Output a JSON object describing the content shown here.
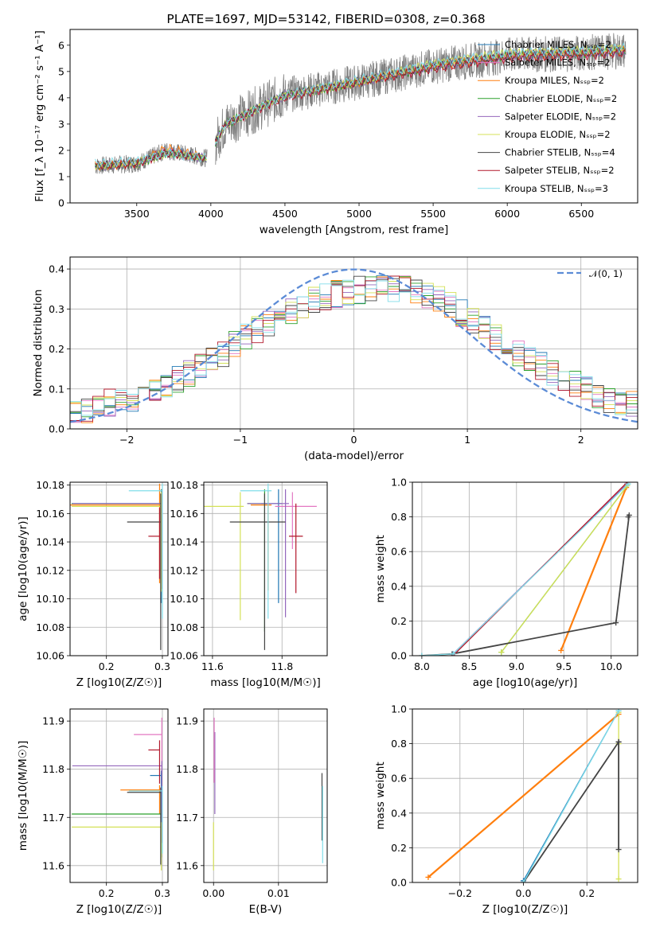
{
  "title": "PLATE=1697, MJD=53142, FIBERID=0308, z=0.368",
  "colors": {
    "Chabrier MILES": "#1f77b4",
    "Salpeter MILES": "#e377c2",
    "Kroupa MILES": "#ff7f0e",
    "Chabrier ELODIE": "#2ca02c",
    "Salpeter ELODIE": "#9467bd",
    "Kroupa ELODIE": "#d4e157",
    "Chabrier STELIB": "#444444",
    "Salpeter STELIB": "#b2182b",
    "Kroupa STELIB": "#80deea",
    "data": "#808080",
    "normal": "#5b8bd6"
  },
  "chart_data": [
    {
      "type": "line",
      "title": "PLATE=1697, MJD=53142, FIBERID=0308, z=0.368",
      "xlabel": "wavelength [Angstrom, rest frame]",
      "ylabel": "Flux [f_λ 10⁻¹⁷ erg cm⁻² s⁻¹ A⁻¹]",
      "xlim": [
        3050,
        6880
      ],
      "ylim": [
        0,
        6.6
      ],
      "xticks": [
        3500,
        4000,
        4500,
        5000,
        5500,
        6000,
        6500
      ],
      "yticks": [
        0,
        1,
        2,
        3,
        4,
        5,
        6
      ],
      "grid": false,
      "legend": "upper-right",
      "series": [
        {
          "name": "Chabrier MILES, N_SSP=2",
          "x": [
            3220,
            3500,
            3700,
            3970,
            4100,
            4500,
            5000,
            5500,
            6000,
            6500,
            6800
          ],
          "y": [
            1.4,
            1.5,
            2.0,
            1.7,
            3.0,
            4.1,
            4.6,
            5.2,
            5.6,
            5.7,
            5.8
          ]
        },
        {
          "name": "Salpeter MILES, N_SSP=2",
          "x": [
            3220,
            3500,
            3700,
            3970,
            4100,
            4500,
            5000,
            5500,
            6000,
            6500,
            6800
          ],
          "y": [
            1.4,
            1.5,
            2.0,
            1.7,
            3.0,
            4.1,
            4.6,
            5.2,
            5.6,
            5.7,
            5.8
          ]
        },
        {
          "name": "Kroupa MILES, N_SSP=2",
          "x": [
            3220,
            3500,
            3700,
            3970,
            4100,
            4500,
            5000,
            5500,
            6000,
            6500,
            6800
          ],
          "y": [
            1.4,
            1.5,
            2.1,
            1.7,
            3.0,
            4.1,
            4.6,
            5.2,
            5.6,
            5.7,
            5.8
          ]
        },
        {
          "name": "Chabrier ELODIE, N_SSP=2",
          "x": [
            3220,
            3500,
            3700,
            3970,
            4100,
            4500,
            5000,
            5500,
            6000,
            6500,
            6800
          ],
          "y": [
            1.4,
            1.5,
            1.9,
            1.7,
            3.0,
            4.1,
            4.6,
            5.2,
            5.6,
            5.7,
            5.8
          ]
        },
        {
          "name": "Salpeter ELODIE, N_SSP=2",
          "x": [
            3220,
            3500,
            3700,
            3970,
            4100,
            4500,
            5000,
            5500,
            6000,
            6500,
            6800
          ],
          "y": [
            1.4,
            1.5,
            1.9,
            1.7,
            3.0,
            4.1,
            4.6,
            5.2,
            5.6,
            5.7,
            5.8
          ]
        },
        {
          "name": "Kroupa ELODIE, N_SSP=2",
          "x": [
            3220,
            3500,
            3700,
            3970,
            4100,
            4500,
            5000,
            5500,
            6000,
            6500,
            6800
          ],
          "y": [
            1.4,
            1.5,
            1.9,
            1.7,
            3.0,
            4.1,
            4.6,
            5.3,
            5.7,
            5.8,
            5.9
          ]
        },
        {
          "name": "Chabrier STELIB, N_SSP=4",
          "x": [
            3220,
            3500,
            3700,
            3970,
            4100,
            4500,
            5000,
            5500,
            6000,
            6500,
            6800
          ],
          "y": [
            1.4,
            1.5,
            1.9,
            1.7,
            3.0,
            4.1,
            4.6,
            5.2,
            5.6,
            5.7,
            5.8
          ]
        },
        {
          "name": "Salpeter STELIB, N_SSP=2",
          "x": [
            3220,
            3500,
            3700,
            3970,
            4100,
            4500,
            5000,
            5500,
            6000,
            6500,
            6800
          ],
          "y": [
            1.4,
            1.5,
            1.9,
            1.7,
            3.0,
            4.0,
            4.6,
            5.1,
            5.5,
            5.6,
            5.7
          ]
        },
        {
          "name": "Kroupa STELIB, N_SSP=3",
          "x": [
            3220,
            3500,
            3700,
            3970,
            4100,
            4500,
            5000,
            5500,
            6000,
            6500,
            6800
          ],
          "y": [
            1.5,
            1.6,
            1.9,
            1.7,
            3.0,
            4.1,
            4.7,
            5.3,
            5.7,
            5.8,
            5.9
          ]
        }
      ]
    },
    {
      "type": "line",
      "xlabel": "(data-model)/error",
      "ylabel": "Normed distribution",
      "xlim": [
        -2.5,
        2.5
      ],
      "ylim": [
        0,
        0.43
      ],
      "xticks": [
        -2,
        -1,
        0,
        1,
        2
      ],
      "yticks": [
        0.0,
        0.1,
        0.2,
        0.3,
        0.4
      ],
      "grid": true,
      "legend": "upper-right",
      "legend_entries": [
        "𝒩(0, 1)"
      ],
      "hist_x": [
        -2.5,
        -2.3,
        -2.1,
        -1.9,
        -1.7,
        -1.5,
        -1.3,
        -1.1,
        -0.9,
        -0.7,
        -0.5,
        -0.3,
        -0.1,
        0.1,
        0.3,
        0.5,
        0.7,
        0.9,
        1.1,
        1.3,
        1.5,
        1.7,
        1.9,
        2.1,
        2.3,
        2.5
      ],
      "hist_y": [
        0.04,
        0.05,
        0.07,
        0.08,
        0.1,
        0.13,
        0.16,
        0.2,
        0.24,
        0.27,
        0.3,
        0.33,
        0.34,
        0.35,
        0.35,
        0.35,
        0.33,
        0.3,
        0.26,
        0.22,
        0.18,
        0.15,
        0.12,
        0.09,
        0.07,
        0.06
      ]
    },
    {
      "type": "scatter",
      "xlabel": "Z [log10(Z/Z☉)]",
      "ylabel": "age [log10(age/yr)]",
      "xlim": [
        0.135,
        0.31
      ],
      "ylim": [
        10.06,
        10.182
      ],
      "xticks": [
        0.2,
        0.3
      ],
      "yticks": [
        10.06,
        10.08,
        10.1,
        10.12,
        10.14,
        10.16,
        10.18
      ],
      "grid": true,
      "points": [
        {
          "series": "Chabrier MILES",
          "x": 0.298,
          "y": 10.167,
          "xerr": [
            0.16,
            0.0
          ],
          "yerr": [
            0.07,
            0.01
          ]
        },
        {
          "series": "Salpeter MILES",
          "x": 0.299,
          "y": 10.167,
          "xerr": [
            0.16,
            0.0
          ],
          "yerr": [
            0.05,
            0.01
          ]
        },
        {
          "series": "Kroupa MILES",
          "x": 0.295,
          "y": 10.166,
          "xerr": [
            0.16,
            0.0
          ],
          "yerr": [
            0.055,
            0.015
          ]
        },
        {
          "series": "Chabrier ELODIE",
          "x": 0.298,
          "y": 10.167,
          "xerr": [
            0.16,
            0.0
          ],
          "yerr": [
            0.04,
            0.01
          ]
        },
        {
          "series": "Salpeter ELODIE",
          "x": 0.299,
          "y": 10.167,
          "xerr": [
            0.16,
            0.0
          ],
          "yerr": [
            0.06,
            0.01
          ]
        },
        {
          "series": "Kroupa ELODIE",
          "x": 0.298,
          "y": 10.165,
          "xerr": [
            0.16,
            0.0
          ],
          "yerr": [
            0.06,
            0.01
          ]
        },
        {
          "series": "Chabrier STELIB",
          "x": 0.297,
          "y": 10.154,
          "xerr": [
            0.06,
            0.0
          ],
          "yerr": [
            0.09,
            0.02
          ]
        },
        {
          "series": "Salpeter STELIB",
          "x": 0.295,
          "y": 10.144,
          "xerr": [
            0.02,
            0.0
          ],
          "yerr": [
            0.03,
            0.02
          ]
        },
        {
          "series": "Kroupa STELIB",
          "x": 0.3,
          "y": 10.176,
          "xerr": [
            0.06,
            0.0
          ],
          "yerr": [
            0.09,
            0.005
          ]
        }
      ]
    },
    {
      "type": "scatter",
      "xlabel": "mass [log10(M/M☉)]",
      "ylabel": "",
      "xlim": [
        11.575,
        11.93
      ],
      "ylim": [
        10.06,
        10.182
      ],
      "xticks": [
        11.6,
        11.8
      ],
      "yticks": [
        10.06,
        10.08,
        10.1,
        10.12,
        10.14,
        10.16,
        10.18
      ],
      "grid": true,
      "points": [
        {
          "series": "Chabrier MILES",
          "x": 11.79,
          "y": 10.167,
          "xerr": [
            0.05,
            0.01
          ],
          "yerr": [
            0.07,
            0.01
          ]
        },
        {
          "series": "Salpeter MILES",
          "x": 11.83,
          "y": 10.165,
          "xerr": [
            0.05,
            0.07
          ],
          "yerr": [
            0.03,
            0.01
          ]
        },
        {
          "series": "Kroupa MILES",
          "x": 11.76,
          "y": 10.166,
          "xerr": [
            0.05,
            0.01
          ],
          "yerr": [
            0.06,
            0.01
          ]
        },
        {
          "series": "Chabrier ELODIE",
          "x": 11.75,
          "y": 10.167,
          "xerr": [
            0.05,
            0.01
          ],
          "yerr": [
            0.09,
            0.01
          ]
        },
        {
          "series": "Salpeter ELODIE",
          "x": 11.81,
          "y": 10.167,
          "xerr": [
            0.11,
            0.01
          ],
          "yerr": [
            0.08,
            0.01
          ]
        },
        {
          "series": "Kroupa ELODIE",
          "x": 11.68,
          "y": 10.165,
          "xerr": [
            0.11,
            0.01
          ],
          "yerr": [
            0.08,
            0.01
          ]
        },
        {
          "series": "Chabrier STELIB",
          "x": 11.75,
          "y": 10.154,
          "xerr": [
            0.1,
            0.06
          ],
          "yerr": [
            0.09,
            0.02
          ]
        },
        {
          "series": "Salpeter STELIB",
          "x": 11.84,
          "y": 10.144,
          "xerr": [
            0.02,
            0.02
          ],
          "yerr": [
            0.04,
            0.023
          ]
        },
        {
          "series": "Kroupa STELIB",
          "x": 11.76,
          "y": 10.176,
          "xerr": [
            0.08,
            0.01
          ],
          "yerr": [
            0.09,
            0.005
          ]
        }
      ]
    },
    {
      "type": "line",
      "xlabel": "age [log10(age/yr)]",
      "ylabel": "mass weight",
      "xlim": [
        7.9,
        10.28
      ],
      "ylim": [
        0,
        1.0
      ],
      "xticks": [
        8.0,
        8.5,
        9.0,
        9.5,
        10.0
      ],
      "yticks": [
        0.0,
        0.2,
        0.4,
        0.6,
        0.8,
        1.0
      ],
      "grid": true,
      "series": [
        {
          "name": "Chabrier MILES",
          "x": [
            8.33,
            10.17
          ],
          "y": [
            0.01,
            0.99
          ]
        },
        {
          "name": "Salpeter MILES",
          "x": [
            8.33,
            10.17
          ],
          "y": [
            0.01,
            0.99
          ]
        },
        {
          "name": "Kroupa MILES",
          "x": [
            9.47,
            10.16
          ],
          "y": [
            0.03,
            0.97
          ]
        },
        {
          "name": "Chabrier ELODIE",
          "x": [
            8.84,
            10.17
          ],
          "y": [
            0.02,
            0.98
          ]
        },
        {
          "name": "Salpeter ELODIE",
          "x": [
            8.33,
            10.17
          ],
          "y": [
            0.01,
            0.99
          ]
        },
        {
          "name": "Kroupa ELODIE",
          "x": [
            8.84,
            10.17
          ],
          "y": [
            0.02,
            0.98
          ]
        },
        {
          "name": "Chabrier STELIB",
          "x": [
            8.0,
            8.32,
            10.05,
            10.19,
            10.18
          ],
          "y": [
            0.0,
            0.01,
            0.19,
            0.81,
            0.8
          ]
        },
        {
          "name": "Salpeter STELIB",
          "x": [
            8.33,
            10.17
          ],
          "y": [
            0.0,
            1.0
          ]
        },
        {
          "name": "Kroupa STELIB",
          "x": [
            8.0,
            8.33,
            10.18
          ],
          "y": [
            0.0,
            0.01,
            0.99
          ]
        }
      ]
    },
    {
      "type": "scatter",
      "xlabel": "Z [log10(Z/Z☉)]",
      "ylabel": "mass [log10(M/M☉)]",
      "xlim": [
        0.135,
        0.31
      ],
      "ylim": [
        11.565,
        11.925
      ],
      "xticks": [
        0.2,
        0.3
      ],
      "yticks": [
        11.6,
        11.7,
        11.8,
        11.9
      ],
      "grid": true,
      "points": [
        {
          "series": "Chabrier MILES",
          "x": 0.298,
          "y": 11.787,
          "xerr": [
            0.02,
            0.0
          ],
          "yerr": [
            0.08,
            0.01
          ]
        },
        {
          "series": "Salpeter MILES",
          "x": 0.299,
          "y": 11.872,
          "xerr": [
            0.05,
            0.0
          ],
          "yerr": [
            0.08,
            0.035
          ]
        },
        {
          "series": "Kroupa MILES",
          "x": 0.295,
          "y": 11.757,
          "xerr": [
            0.07,
            0.0
          ],
          "yerr": [
            0.05,
            0.01
          ]
        },
        {
          "series": "Chabrier ELODIE",
          "x": 0.298,
          "y": 11.707,
          "xerr": [
            0.16,
            0.0
          ],
          "yerr": [
            0.09,
            0.01
          ]
        },
        {
          "series": "Salpeter ELODIE",
          "x": 0.299,
          "y": 11.807,
          "xerr": [
            0.16,
            0.0
          ],
          "yerr": [
            0.16,
            0.01
          ]
        },
        {
          "series": "Kroupa ELODIE",
          "x": 0.298,
          "y": 11.68,
          "xerr": [
            0.16,
            0.0
          ],
          "yerr": [
            0.09,
            0.01
          ]
        },
        {
          "series": "Chabrier STELIB",
          "x": 0.297,
          "y": 11.752,
          "xerr": [
            0.06,
            0.0
          ],
          "yerr": [
            0.15,
            0.01
          ]
        },
        {
          "series": "Salpeter STELIB",
          "x": 0.295,
          "y": 11.84,
          "xerr": [
            0.02,
            0.0
          ],
          "yerr": [
            0.07,
            0.02
          ]
        },
        {
          "series": "Kroupa STELIB",
          "x": 0.3,
          "y": 11.755,
          "xerr": [
            0.06,
            0.0
          ],
          "yerr": [
            0.13,
            0.01
          ]
        }
      ]
    },
    {
      "type": "scatter",
      "xlabel": "E(B-V)",
      "ylabel": "",
      "xlim": [
        -0.0015,
        0.0175
      ],
      "ylim": [
        11.565,
        11.925
      ],
      "xticks": [
        0.0,
        0.01
      ],
      "yticks": [
        11.6,
        11.7,
        11.8,
        11.9
      ],
      "grid": true,
      "points": [
        {
          "series": "Salpeter ELODIE",
          "x": 0.0002,
          "y": 11.807,
          "yerr": [
            0.1,
            0.07
          ]
        },
        {
          "series": "Salpeter MILES",
          "x": 0.0001,
          "y": 11.872,
          "yerr": [
            0.1,
            0.035
          ]
        },
        {
          "series": "Kroupa ELODIE",
          "x": 0.0,
          "y": 11.68,
          "yerr": [
            0.09,
            0.01
          ]
        },
        {
          "series": "Chabrier STELIB",
          "x": 0.0167,
          "y": 11.752,
          "yerr": [
            0.1,
            0.04
          ]
        },
        {
          "series": "Kroupa STELIB",
          "x": 0.0168,
          "y": 11.755,
          "yerr": [
            0.15,
            0.01
          ]
        }
      ]
    },
    {
      "type": "line",
      "xlabel": "Z [log10(Z/Z☉)]",
      "ylabel": "mass weight",
      "xlim": [
        -0.35,
        0.36
      ],
      "ylim": [
        0,
        1.0
      ],
      "xticks": [
        -0.2,
        0.0,
        0.2
      ],
      "yticks": [
        0.0,
        0.2,
        0.4,
        0.6,
        0.8,
        1.0
      ],
      "grid": true,
      "series": [
        {
          "name": "Kroupa MILES",
          "x": [
            -0.3,
            0.3
          ],
          "y": [
            0.03,
            0.97
          ]
        },
        {
          "name": "Chabrier MILES",
          "x": [
            0.0,
            0.3
          ],
          "y": [
            0.01,
            0.99
          ]
        },
        {
          "name": "Kroupa ELODIE",
          "x": [
            0.3,
            0.3,
            0.3
          ],
          "y": [
            0.02,
            0.8,
            0.98
          ]
        },
        {
          "name": "Chabrier STELIB",
          "x": [
            0.0,
            0.3,
            0.3,
            0.3
          ],
          "y": [
            0.0,
            0.81,
            0.19,
            0.81
          ]
        },
        {
          "name": "Kroupa STELIB",
          "x": [
            0.0,
            0.3
          ],
          "y": [
            0.0,
            0.99
          ]
        }
      ]
    }
  ]
}
